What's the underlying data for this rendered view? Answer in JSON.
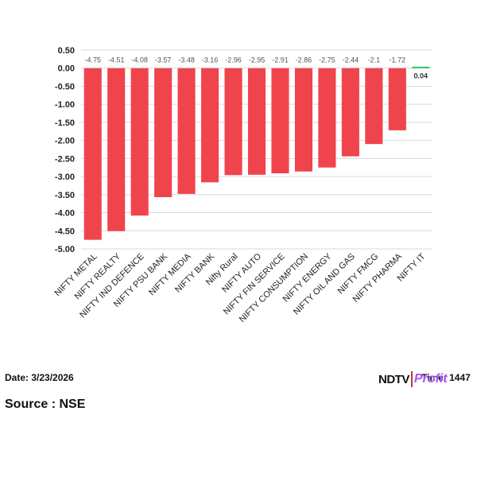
{
  "chart_data": {
    "type": "bar",
    "categories": [
      "NIFTY METAL",
      "NIFTY REALTY",
      "NIFTY IND DEFENCE",
      "NIFTY PSU BANK",
      "NIFTY MEDIA",
      "NIFTY BANK",
      "Nifty Rural",
      "NIFTY AUTO",
      "NIFTY FIN SERVICE",
      "NIFTY CONSUMPTION",
      "NIFTY ENERGY",
      "NIFTY OIL AND GAS",
      "NIFTY FMCG",
      "NIFTY PHARMA",
      "NIFTY IT"
    ],
    "values": [
      -4.75,
      -4.51,
      -4.08,
      -3.57,
      -3.48,
      -3.16,
      -2.96,
      -2.95,
      -2.91,
      -2.86,
      -2.75,
      -2.44,
      -2.1,
      -1.72,
      0.04
    ],
    "data_labels": [
      "-4.75",
      "-4.51",
      "-4.08",
      "-3.57",
      "-3.48",
      "-3.16",
      "-2.96",
      "-2.95",
      "-2.91",
      "-2.86",
      "-2.75",
      "-2.44",
      "-2.1",
      "-1.72",
      "0.04"
    ],
    "yticks": [
      "0.50",
      "0.00",
      "-0.50",
      "-1.00",
      "-1.50",
      "-2.00",
      "-2.50",
      "-3.00",
      "-3.50",
      "-4.00",
      "-4.50",
      "-5.00"
    ],
    "ylim": [
      -5.0,
      0.5
    ],
    "grid": true,
    "colors": {
      "negative": "#f0444d",
      "positive": "#22c55e"
    }
  },
  "footer": {
    "date": "Date: 3/23/2026",
    "source": "Source : NSE",
    "time": "Time: 1447"
  },
  "logo": {
    "brand": "NDTV",
    "product": "Profit"
  }
}
